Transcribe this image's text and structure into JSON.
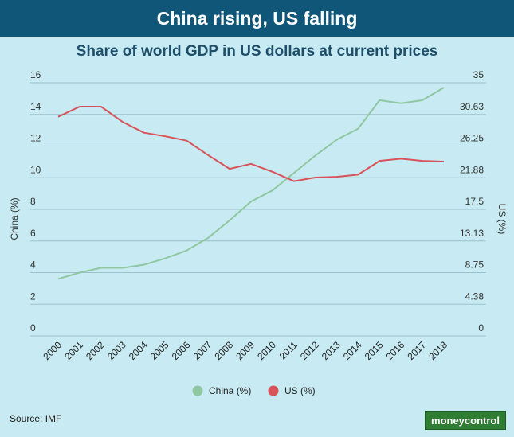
{
  "header": {
    "title": "China rising, US falling"
  },
  "source": "Source: IMF",
  "logo": "moneycontrol",
  "colors": {
    "banner": "#0f5678",
    "background": "#c8eaf2",
    "china": "#8fc7a2",
    "us": "#d8545a",
    "grid": "#9cc1cc"
  },
  "chart_data": {
    "type": "line",
    "title": "Share of world GDP in US dollars at current prices",
    "x": [
      "2000",
      "2001",
      "2002",
      "2003",
      "2004",
      "2005",
      "2006",
      "2007",
      "2008",
      "2009",
      "2010",
      "2011",
      "2012",
      "2013",
      "2014",
      "2015",
      "2016",
      "2017",
      "2018"
    ],
    "y_left": {
      "label": "China (%)",
      "ylim": [
        0,
        16
      ],
      "ticks": [
        "0",
        "2",
        "4",
        "6",
        "8",
        "10",
        "12",
        "14",
        "16"
      ]
    },
    "y_right": {
      "label": "US (%)",
      "ylim": [
        0,
        35
      ],
      "ticks": [
        "0",
        "4.38",
        "8.75",
        "13.13",
        "17.5",
        "21.88",
        "26.25",
        "30.63",
        "35"
      ]
    },
    "grid": true,
    "legend_position": "bottom",
    "series": [
      {
        "name": "China (%)",
        "axis": "left",
        "color": "#8fc7a2",
        "values": [
          3.6,
          4.0,
          4.3,
          4.3,
          4.5,
          4.9,
          5.4,
          6.2,
          7.3,
          8.5,
          9.2,
          10.3,
          11.4,
          12.4,
          13.1,
          14.9,
          14.7,
          14.9,
          15.7
        ]
      },
      {
        "name": "US (%)",
        "axis": "right",
        "color": "#d8545a",
        "values": [
          30.3,
          31.7,
          31.7,
          29.6,
          28.1,
          27.6,
          27.0,
          25.0,
          23.1,
          23.8,
          22.7,
          21.4,
          21.9,
          22.0,
          22.3,
          24.2,
          24.5,
          24.2,
          24.1
        ]
      }
    ]
  }
}
